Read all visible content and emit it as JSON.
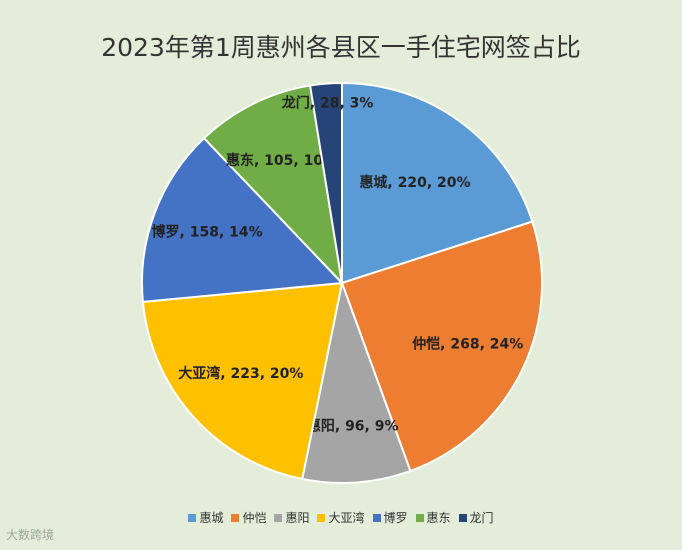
{
  "chart_data": {
    "type": "pie",
    "title": "2023年第1周惠州各县区一手住宅网签占比",
    "categories": [
      "惠城",
      "仲恺",
      "惠阳",
      "大亚湾",
      "博罗",
      "惠东",
      "龙门"
    ],
    "values": [
      220,
      268,
      96,
      223,
      158,
      105,
      28
    ],
    "labels": [
      "惠城, 220, 20%",
      "仲恺, 268, 24%",
      "惠阳, 96, 9%",
      "大亚湾, 223, 20%",
      "博罗, 158, 14%",
      "惠东, 105, 10%",
      "龙门, 28, 3%"
    ],
    "colors": [
      "#5b9bd5",
      "#ed7d31",
      "#a5a5a5",
      "#ffc000",
      "#4472c4",
      "#70ad47",
      "#264478"
    ],
    "legend_position": "bottom"
  },
  "watermark": "大数跨境"
}
